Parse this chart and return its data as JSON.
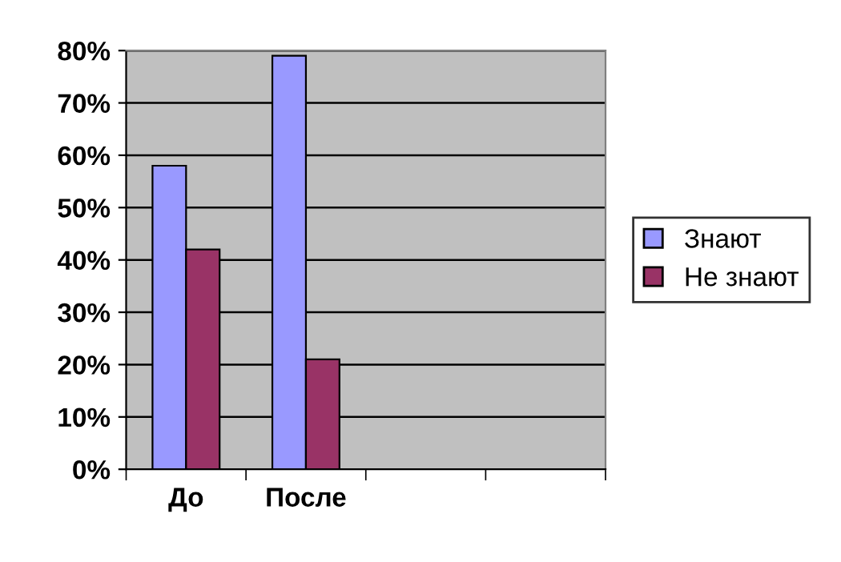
{
  "chart_data": {
    "type": "bar",
    "categories": [
      "До",
      "После",
      null,
      null
    ],
    "series": [
      {
        "name": "Знают",
        "color": "#9999ff",
        "values": [
          58,
          79,
          null,
          null
        ]
      },
      {
        "name": "Не знают",
        "color": "#993366",
        "values": [
          42,
          21,
          null,
          null
        ]
      }
    ],
    "ylim": [
      0,
      80
    ],
    "yticks": [
      {
        "value": 0,
        "label": "0%"
      },
      {
        "value": 10,
        "label": "10%"
      },
      {
        "value": 20,
        "label": "20%"
      },
      {
        "value": 30,
        "label": "30%"
      },
      {
        "value": 40,
        "label": "40%"
      },
      {
        "value": 50,
        "label": "50%"
      },
      {
        "value": 60,
        "label": "60%"
      },
      {
        "value": 70,
        "label": "70%"
      },
      {
        "value": 80,
        "label": "80%"
      }
    ],
    "grid": "y",
    "legend": "right"
  }
}
